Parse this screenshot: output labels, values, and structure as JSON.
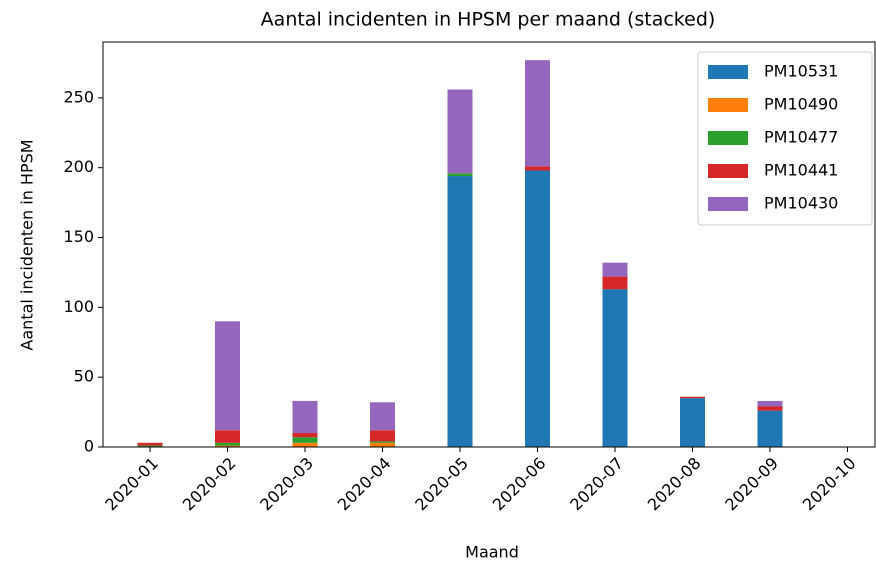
{
  "chart_data": {
    "type": "bar",
    "stacked": true,
    "title": "Aantal incidenten in HPSM per maand (stacked)",
    "xlabel": "Maand",
    "ylabel": "Aantal incidenten in HPSM",
    "categories": [
      "2020-01",
      "2020-02",
      "2020-03",
      "2020-04",
      "2020-05",
      "2020-06",
      "2020-07",
      "2020-08",
      "2020-09",
      "2020-10"
    ],
    "series": [
      {
        "name": "PM10531",
        "color": "#1f77b4",
        "values": [
          0,
          0,
          0,
          0,
          194,
          198,
          113,
          35,
          26,
          0
        ]
      },
      {
        "name": "PM10490",
        "color": "#ff7f0e",
        "values": [
          0,
          1,
          3,
          3,
          0,
          0,
          0,
          0,
          0,
          0
        ]
      },
      {
        "name": "PM10477",
        "color": "#2ca02c",
        "values": [
          1,
          2,
          4,
          1,
          2,
          0,
          0,
          0,
          0,
          0
        ]
      },
      {
        "name": "PM10441",
        "color": "#d62728",
        "values": [
          2,
          9,
          3,
          8,
          0,
          3,
          9,
          1,
          3,
          0
        ]
      },
      {
        "name": "PM10430",
        "color": "#9467bd",
        "values": [
          0,
          78,
          23,
          20,
          60,
          76,
          10,
          0,
          4,
          0
        ]
      }
    ],
    "ylim": [
      0,
      290
    ],
    "yticks": [
      0,
      50,
      100,
      150,
      200,
      250
    ],
    "legend": "upper right"
  }
}
